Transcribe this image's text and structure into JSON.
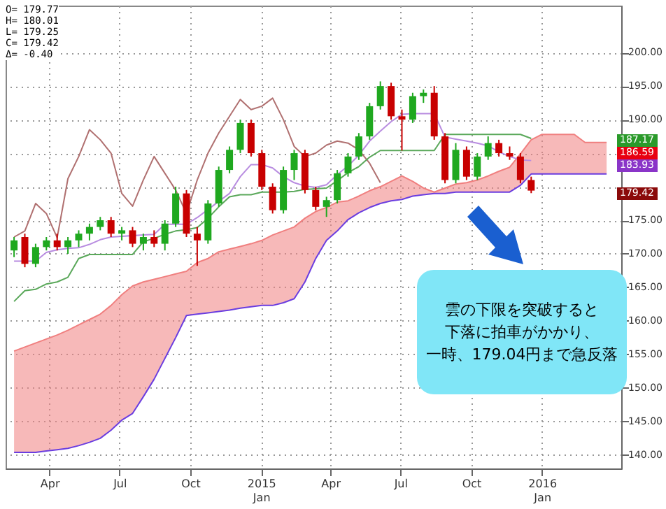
{
  "chart_data": {
    "type": "candlestick",
    "x": [
      "2014-02-14",
      "2014-02-28",
      "2014-03-14",
      "2014-03-28",
      "2014-04-11",
      "2014-04-25",
      "2014-05-09",
      "2014-05-23",
      "2014-06-06",
      "2014-06-20",
      "2014-07-04",
      "2014-07-18",
      "2014-08-01",
      "2014-08-15",
      "2014-08-29",
      "2014-09-12",
      "2014-09-26",
      "2014-10-10",
      "2014-10-24",
      "2014-11-07",
      "2014-11-21",
      "2014-12-05",
      "2014-12-19",
      "2015-01-02",
      "2015-01-16",
      "2015-01-30",
      "2015-02-13",
      "2015-02-27",
      "2015-03-13",
      "2015-03-27",
      "2015-04-10",
      "2015-04-24",
      "2015-05-08",
      "2015-05-22",
      "2015-06-05",
      "2015-06-19",
      "2015-07-03",
      "2015-07-17",
      "2015-07-31",
      "2015-08-14",
      "2015-08-28",
      "2015-09-11",
      "2015-09-25",
      "2015-10-09",
      "2015-10-23",
      "2015-11-06",
      "2015-11-20",
      "2015-12-04",
      "2015-12-18"
    ],
    "ohlc": [
      [
        170.5,
        172.5,
        169.5,
        172
      ],
      [
        172.5,
        173,
        168,
        168.5
      ],
      [
        168.5,
        171.5,
        168,
        171
      ],
      [
        171,
        172.5,
        170.5,
        172
      ],
      [
        172,
        173,
        170.5,
        171
      ],
      [
        171,
        172.5,
        170,
        172
      ],
      [
        172,
        173.5,
        171,
        173
      ],
      [
        173,
        174.5,
        172,
        174
      ],
      [
        174,
        175.5,
        173.5,
        175
      ],
      [
        175,
        175.5,
        172.5,
        173
      ],
      [
        173,
        174,
        172,
        173.5
      ],
      [
        173.5,
        174,
        171,
        171.5
      ],
      [
        171.5,
        173,
        170.5,
        172.5
      ],
      [
        172.5,
        173.5,
        171,
        171.5
      ],
      [
        171.5,
        175,
        170.5,
        174.5
      ],
      [
        174.5,
        180,
        174,
        179
      ],
      [
        179,
        179.5,
        172.5,
        173
      ],
      [
        173,
        174,
        168.2,
        172
      ],
      [
        172,
        178,
        171.5,
        177.5
      ],
      [
        177.5,
        183,
        177,
        182.5
      ],
      [
        182.5,
        186,
        182,
        185.5
      ],
      [
        185.5,
        190,
        185,
        189.5
      ],
      [
        189.5,
        190,
        184.5,
        185
      ],
      [
        185,
        185.5,
        179.5,
        180
      ],
      [
        180,
        180.5,
        176,
        176.5
      ],
      [
        176.5,
        183,
        176,
        182.5
      ],
      [
        182.5,
        185.5,
        181,
        185
      ],
      [
        185,
        185.5,
        179,
        179.5
      ],
      [
        179.5,
        180,
        176.5,
        177
      ],
      [
        177,
        178.5,
        175.5,
        178
      ],
      [
        178,
        182.5,
        177.5,
        182
      ],
      [
        182,
        185,
        181.5,
        184.5
      ],
      [
        184.5,
        188,
        184,
        187.5
      ],
      [
        187.5,
        192.5,
        187,
        192
      ],
      [
        192,
        195.7,
        191.5,
        195
      ],
      [
        195,
        195.5,
        190,
        190.5
      ],
      [
        190.5,
        191.5,
        185.4,
        190
      ],
      [
        190,
        194,
        189.5,
        193.5
      ],
      [
        193.5,
        194.5,
        192.5,
        194
      ],
      [
        194,
        195,
        187,
        187.5
      ],
      [
        187.5,
        188,
        180.5,
        181
      ],
      [
        181,
        186.5,
        180.5,
        185.5
      ],
      [
        185.5,
        186,
        181,
        181.5
      ],
      [
        181.5,
        185,
        181,
        184.5
      ],
      [
        184.5,
        187.5,
        184,
        186.5
      ],
      [
        186.5,
        187,
        184.5,
        185
      ],
      [
        185,
        186,
        184,
        184.5
      ],
      [
        184.5,
        185,
        180.5,
        181
      ],
      [
        181,
        181.5,
        179.04,
        179.42
      ]
    ],
    "series": [
      {
        "type": "line",
        "color": "#f07f7f",
        "x": [
          "2014-02-14",
          "2014-02-28",
          "2014-03-14",
          "2014-03-28",
          "2014-04-11",
          "2014-04-25",
          "2014-05-09",
          "2014-05-23",
          "2014-06-06",
          "2014-06-20",
          "2014-07-04",
          "2014-07-18",
          "2014-08-01",
          "2014-08-15",
          "2014-08-29",
          "2014-09-12",
          "2014-09-26",
          "2014-10-10",
          "2014-10-24",
          "2014-11-07",
          "2014-11-21",
          "2014-12-05",
          "2014-12-19",
          "2015-01-02",
          "2015-01-16",
          "2015-01-30",
          "2015-02-13",
          "2015-02-27",
          "2015-03-13",
          "2015-03-27",
          "2015-04-10",
          "2015-04-24",
          "2015-05-08",
          "2015-05-22",
          "2015-06-05",
          "2015-06-19",
          "2015-07-03",
          "2015-07-17",
          "2015-07-31",
          "2015-08-14",
          "2015-08-28",
          "2015-09-11",
          "2015-09-25",
          "2015-10-09",
          "2015-10-23",
          "2015-11-06",
          "2015-11-20",
          "2015-12-04",
          "2015-12-18",
          "2016-01-01",
          "2016-01-15",
          "2016-01-29",
          "2016-02-12",
          "2016-02-26",
          "2016-03-11",
          "2016-03-25"
        ],
        "values": [
          155.5,
          156.1,
          156.7,
          157.3,
          157.9,
          158.6,
          159.4,
          160.2,
          161.0,
          162.3,
          163.9,
          165.2,
          165.8,
          166.2,
          166.6,
          167.0,
          167.4,
          168.7,
          169.3,
          170.3,
          170.7,
          171.1,
          171.5,
          172.0,
          172.8,
          173.4,
          174.0,
          175.3,
          176.3,
          176.9,
          177.7,
          177.9,
          178.6,
          179.4,
          180.0,
          180.8,
          181.6,
          180.8,
          179.8,
          179.2,
          179.8,
          180.4,
          180.6,
          181.0,
          181.6,
          182.3,
          182.9,
          184.9,
          187.0,
          187.8,
          187.8,
          187.8,
          187.8,
          186.6,
          186.6,
          186.6
        ],
        "lower": [
          140.4,
          140.4,
          140.4,
          140.6,
          140.8,
          141.0,
          141.4,
          141.9,
          142.5,
          143.7,
          145.2,
          146.2,
          148.7,
          151.3,
          154.4,
          157.5,
          160.8,
          161.0,
          161.2,
          161.4,
          161.6,
          161.9,
          162.1,
          162.3,
          162.3,
          162.7,
          163.3,
          165.8,
          169.3,
          172.0,
          173.4,
          175.1,
          176.1,
          176.9,
          177.5,
          177.9,
          178.1,
          178.6,
          178.8,
          179.0,
          179.0,
          179.2,
          179.2,
          179.2,
          179.2,
          179.2,
          179.2,
          180.2,
          181.9,
          181.9,
          181.9,
          181.9,
          181.9,
          181.9,
          181.9,
          181.9
        ],
        "upper": [
          155.5,
          156.1,
          156.7,
          157.3,
          157.9,
          158.6,
          159.4,
          160.2,
          161.0,
          162.3,
          163.9,
          165.2,
          165.8,
          166.2,
          166.6,
          167.0,
          167.4,
          168.7,
          169.3,
          170.3,
          170.7,
          171.1,
          171.5,
          172.0,
          172.8,
          173.4,
          174.0,
          175.3,
          176.3,
          176.9,
          177.7,
          177.9,
          178.6,
          179.4,
          180.0,
          180.8,
          181.6,
          180.8,
          179.8,
          179.2,
          179.8,
          180.4,
          180.6,
          181.0,
          181.6,
          182.3,
          182.9,
          184.9,
          187.0,
          187.8,
          187.8,
          187.8,
          187.8,
          186.6,
          186.6,
          186.6
        ]
      },
      {
        "type": "line",
        "color": "#6a3de0",
        "x": [
          "2014-02-14",
          "2014-02-28",
          "2014-03-14",
          "2014-03-28",
          "2014-04-11",
          "2014-04-25",
          "2014-05-09",
          "2014-05-23",
          "2014-06-06",
          "2014-06-20",
          "2014-07-04",
          "2014-07-18",
          "2014-08-01",
          "2014-08-15",
          "2014-08-29",
          "2014-09-12",
          "2014-09-26",
          "2014-10-10",
          "2014-10-24",
          "2014-11-07",
          "2014-11-21",
          "2014-12-05",
          "2014-12-19",
          "2015-01-02",
          "2015-01-16",
          "2015-01-30",
          "2015-02-13",
          "2015-02-27",
          "2015-03-13",
          "2015-03-27",
          "2015-04-10",
          "2015-04-24",
          "2015-05-08",
          "2015-05-22",
          "2015-06-05",
          "2015-06-19",
          "2015-07-03",
          "2015-07-17",
          "2015-07-31",
          "2015-08-14",
          "2015-08-28",
          "2015-09-11",
          "2015-09-25",
          "2015-10-09",
          "2015-10-23",
          "2015-11-06",
          "2015-11-20",
          "2015-12-04",
          "2015-12-18",
          "2016-01-01",
          "2016-01-15",
          "2016-01-29",
          "2016-02-12",
          "2016-02-26",
          "2016-03-11",
          "2016-03-25"
        ],
        "values": [
          140.4,
          140.4,
          140.4,
          140.6,
          140.8,
          141.0,
          141.4,
          141.9,
          142.5,
          143.7,
          145.2,
          146.2,
          148.7,
          151.3,
          154.4,
          157.5,
          160.8,
          161.0,
          161.2,
          161.4,
          161.6,
          161.9,
          162.1,
          162.3,
          162.3,
          162.7,
          163.3,
          165.8,
          169.3,
          172.0,
          173.4,
          175.1,
          176.1,
          176.9,
          177.5,
          177.9,
          178.1,
          178.6,
          178.8,
          179.0,
          179.0,
          179.2,
          179.2,
          179.2,
          179.2,
          179.2,
          179.2,
          180.2,
          181.9,
          181.9,
          181.9,
          181.9,
          181.9,
          181.9,
          181.9,
          181.9
        ]
      },
      {
        "type": "line",
        "color": "#b07070",
        "values": [
          172.5,
          173.4,
          177.5,
          176.0,
          172.4,
          181.2,
          184.5,
          188.5,
          187.0,
          185.0,
          179.0,
          177.1,
          181.0,
          184.5,
          182.0,
          179.5,
          176.0,
          181.0,
          185.0,
          188.0,
          190.5,
          193.0,
          191.5,
          192.0,
          193.2,
          190.0,
          186.0,
          184.5,
          185.0,
          186.2,
          186.8,
          186.5,
          185.5,
          183.5,
          180.6,
          null,
          null,
          null,
          null,
          null,
          null,
          null,
          null,
          null,
          null,
          null,
          null,
          null,
          null
        ]
      },
      {
        "type": "line",
        "color": "#5aa85a",
        "values": [
          162.9,
          164.5,
          164.7,
          165.5,
          165.8,
          166.5,
          169.3,
          169.9,
          169.9,
          169.9,
          169.9,
          169.9,
          171.8,
          172.3,
          172.9,
          173.4,
          173.6,
          173.9,
          175.3,
          177.0,
          178.5,
          178.8,
          178.8,
          179.2,
          179.2,
          179.2,
          179.3,
          179.6,
          179.7,
          179.8,
          180.9,
          182.1,
          183.0,
          184.4,
          185.4,
          185.4,
          185.4,
          185.4,
          185.4,
          185.4,
          187.8,
          187.8,
          187.8,
          187.8,
          187.8,
          187.8,
          187.8,
          187.8,
          187.2
        ]
      },
      {
        "type": "line",
        "color": "#b88ce0",
        "values": [
          168.9,
          168.9,
          168.9,
          170.2,
          170.6,
          170.8,
          170.9,
          171.4,
          172.1,
          172.5,
          172.6,
          172.7,
          172.8,
          172.9,
          174.4,
          174.4,
          174.4,
          175.4,
          176.6,
          177.8,
          179.0,
          181.5,
          183.3,
          183.3,
          182.8,
          181.5,
          180.6,
          180.1,
          179.9,
          180.3,
          181.8,
          183.1,
          184.7,
          186.8,
          188.3,
          189.7,
          190.8,
          190.9,
          190.9,
          190.9,
          187.4,
          187.1,
          186.8,
          186.5,
          186.1,
          185.2,
          184.5,
          184.0,
          183.9
        ]
      }
    ],
    "xlim": [
      "2014-02-03",
      "2016-04-13"
    ],
    "xticks": [
      {
        "value": "2014-04-01",
        "label": "Apr"
      },
      {
        "value": "2014-07-01",
        "label": "Jul"
      },
      {
        "value": "2014-10-01",
        "label": "Oct"
      },
      {
        "value": "2015-01-01",
        "label": "2015\nJan"
      },
      {
        "value": "2015-04-01",
        "label": "Apr"
      },
      {
        "value": "2015-07-01",
        "label": "Jul"
      },
      {
        "value": "2015-10-01",
        "label": "Oct"
      },
      {
        "value": "2016-01-01",
        "label": "2016\nJan"
      }
    ],
    "ylim": [
      138,
      207
    ],
    "yticks": [
      {
        "value": 140,
        "label": "140.00"
      },
      {
        "value": 145,
        "label": "145.00"
      },
      {
        "value": 150,
        "label": "150.00"
      },
      {
        "value": 155,
        "label": "155.00"
      },
      {
        "value": 160,
        "label": "160.00"
      },
      {
        "value": 165,
        "label": "165.00"
      },
      {
        "value": 170,
        "label": "170.00"
      },
      {
        "value": 175,
        "label": "175.00"
      },
      {
        "value": 180,
        "label": null
      },
      {
        "value": 185,
        "label": null
      },
      {
        "value": 190,
        "label": "190.00"
      },
      {
        "value": 195,
        "label": "195.00"
      },
      {
        "value": 200,
        "label": "200.00"
      }
    ],
    "grid": true,
    "annotations": [
      "O= 179.77",
      "H= 180.01",
      "L= 179.25",
      "C= 179.42",
      "Δ= -0.40",
      "187.17",
      "186.59",
      "183.93",
      "179.42",
      "雲の下限を突破すると下落に拍車がかかり、一時、179.04円まで急反落"
    ]
  }
}
